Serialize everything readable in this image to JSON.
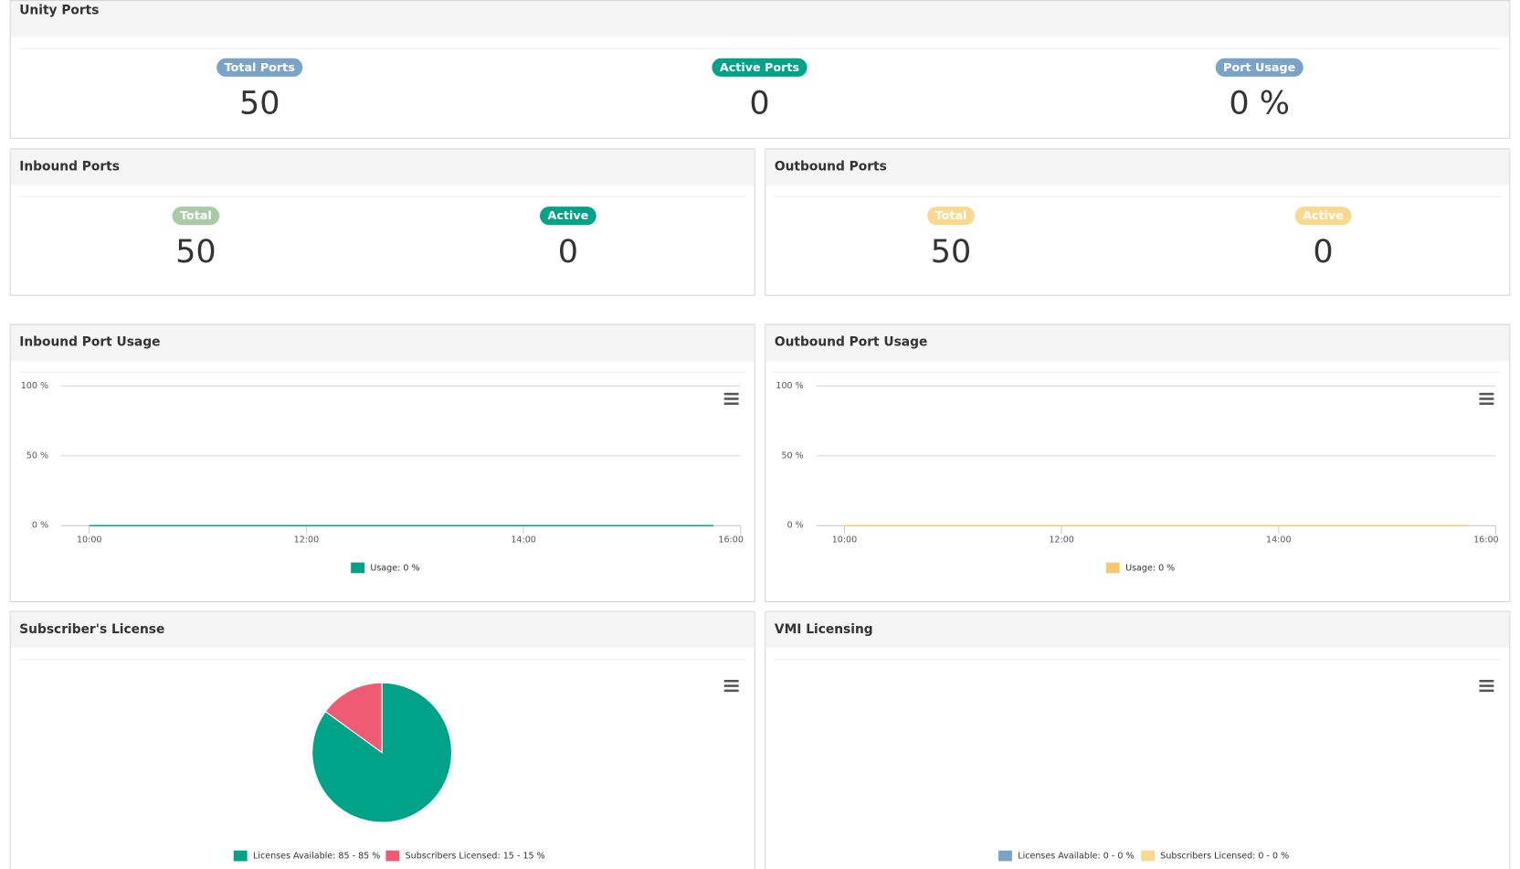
{
  "panels": [
    {
      "title": "Unity Ports",
      "stats": [
        {
          "label": "Total Ports",
          "value": "50",
          "color": "#7ba3c8"
        },
        {
          "label": "Active Ports",
          "value": "0",
          "color": "#00a388"
        },
        {
          "label": "Port Usage",
          "value": "0 %",
          "color": "#7ba3c8"
        }
      ]
    },
    {
      "title": "Inbound Ports",
      "stats": [
        {
          "label": "Total",
          "value": "50",
          "color": "#a9cba6"
        },
        {
          "label": "Active",
          "value": "0",
          "color": "#00a388"
        }
      ]
    },
    {
      "title": "Outbound Ports",
      "stats": [
        {
          "label": "Total",
          "value": "50",
          "color": "#f9d98e"
        },
        {
          "label": "Active",
          "value": "0",
          "color": "#f9d98e"
        }
      ]
    },
    {
      "title": "Inbound Port Usage",
      "chart": {
        "type": "line",
        "xlim": [
          9.74,
          16
        ],
        "xticks": [
          {
            "value": 10,
            "label": "10:00"
          },
          {
            "value": 12,
            "label": "12:00"
          },
          {
            "value": 14,
            "label": "14:00"
          },
          {
            "value": 16,
            "label": "16:00"
          }
        ],
        "ylim": [
          0,
          100
        ],
        "yticks": [
          {
            "value": 0,
            "label": "0 %"
          },
          {
            "value": 50,
            "label": "50 %"
          },
          {
            "value": 100,
            "label": "100 %"
          }
        ],
        "grid": true,
        "series": [
          {
            "name": "Usage: 0 %",
            "color": "#00a388",
            "x": [
              10,
              15.75
            ],
            "values": [
              0,
              0
            ]
          }
        ]
      }
    },
    {
      "title": "Outbound Port Usage",
      "chart": {
        "type": "line",
        "xlim": [
          9.74,
          16
        ],
        "xticks": [
          {
            "value": 10,
            "label": "10:00"
          },
          {
            "value": 12,
            "label": "12:00"
          },
          {
            "value": 14,
            "label": "14:00"
          },
          {
            "value": 16,
            "label": "16:00"
          }
        ],
        "ylim": [
          0,
          100
        ],
        "yticks": [
          {
            "value": 0,
            "label": "0 %"
          },
          {
            "value": 50,
            "label": "50 %"
          },
          {
            "value": 100,
            "label": "100 %"
          }
        ],
        "grid": true,
        "series": [
          {
            "name": "Usage: 0 %",
            "color": "#f6c86e",
            "x": [
              10,
              15.75
            ],
            "values": [
              0,
              0
            ]
          }
        ]
      }
    },
    {
      "title": "Subscriber's License",
      "chart": {
        "type": "pie",
        "categories": [
          "Licenses Available: 85 - 85 %",
          "Subscribers Licensed: 15 - 15 %"
        ],
        "values": [
          85,
          15
        ],
        "colors": [
          "#00a388",
          "#ef5b73"
        ]
      }
    },
    {
      "title": "VMI Licensing",
      "chart": {
        "type": "pie",
        "categories": [
          "Licenses Available: 0 - 0 %",
          "Subscribers Licensed: 0 - 0 %"
        ],
        "values": [
          0,
          0
        ],
        "colors": [
          "#7ba3c8",
          "#f9d98e"
        ]
      }
    }
  ]
}
